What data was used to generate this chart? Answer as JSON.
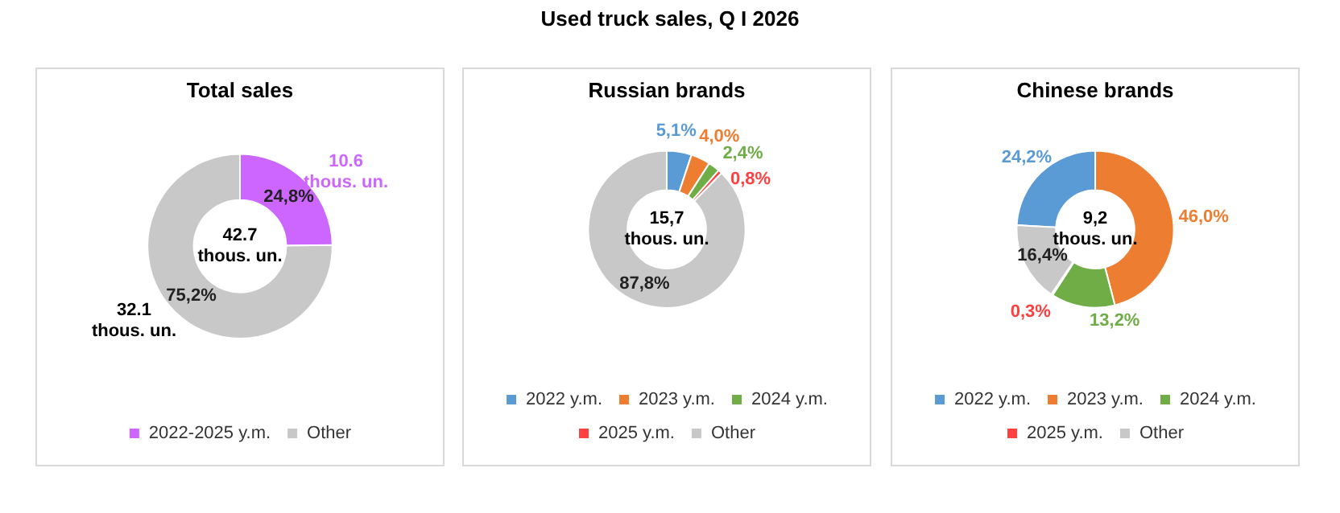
{
  "chart_data": [
    {
      "type": "donut",
      "title": "Total sales",
      "categories": [
        "2022-2025 y.m.",
        "Other"
      ],
      "values": [
        24.8,
        75.2
      ],
      "colors": [
        "#cc66ff",
        "#c8c8c8"
      ],
      "value_labels": [
        "24,8%",
        "75,2%"
      ],
      "legend": "bottom",
      "annotations": [
        "Used truck sales, Q I 2026",
        "42.7\nthous. un.",
        "10.6\nthous. un.",
        "32.1\nthous. un."
      ]
    },
    {
      "type": "donut",
      "title": "Russian brands",
      "categories": [
        "2022 y.m.",
        "2023 y.m.",
        "2024 y.m.",
        "2025 y.m.",
        "Other"
      ],
      "values": [
        5.1,
        4.0,
        2.4,
        0.8,
        87.8
      ],
      "colors": [
        "#5b9bd5",
        "#ed7d31",
        "#70ad47",
        "#ff4040",
        "#c8c8c8"
      ],
      "value_labels": [
        "5,1%",
        "4,0%",
        "2,4%",
        "0,8%",
        "87,8%"
      ],
      "legend": "bottom",
      "annotations": [
        "15,7\nthous. un."
      ]
    },
    {
      "type": "donut",
      "title": "Chinese brands",
      "categories": [
        "2022 y.m.",
        "2023 y.m.",
        "2024 y.m.",
        "2025 y.m.",
        "Other"
      ],
      "values": [
        24.2,
        46.0,
        13.2,
        0.3,
        16.4
      ],
      "colors": [
        "#5b9bd5",
        "#ed7d31",
        "#70ad47",
        "#ff4040",
        "#c8c8c8"
      ],
      "value_labels": [
        "24,2%",
        "46,0%",
        "13,2%",
        "0,3%",
        "16,4%"
      ],
      "legend": "bottom",
      "annotations": [
        "9,2\nthous. un."
      ]
    }
  ]
}
